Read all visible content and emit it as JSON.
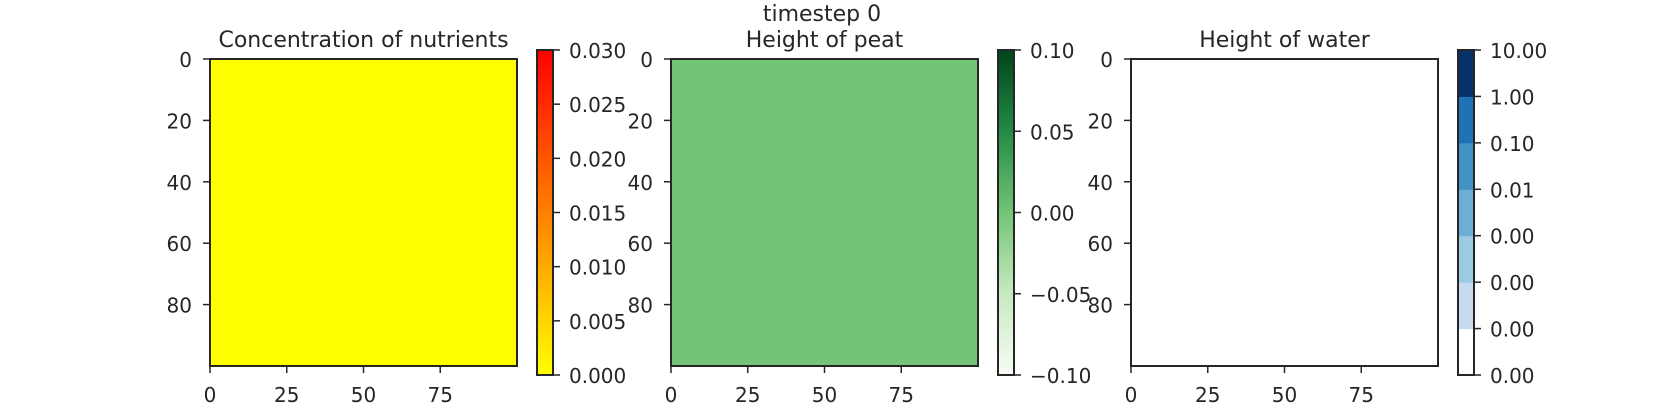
{
  "figure": {
    "suptitle": "timestep 0"
  },
  "chart_data": [
    {
      "type": "heatmap",
      "title": "Concentration of nutrients",
      "xlabel": "",
      "ylabel": "",
      "x_ticks": [
        0,
        25,
        50,
        75
      ],
      "y_ticks": [
        0,
        20,
        40,
        60,
        80
      ],
      "xlim": [
        0,
        100
      ],
      "ylim": [
        100,
        0
      ],
      "grid_size": [
        100,
        100
      ],
      "uniform_value": 0.0,
      "fill_color": "#ffff00",
      "colorbar": {
        "type": "continuous",
        "range": [
          0.0,
          0.03
        ],
        "ticks": [
          "0.000",
          "0.005",
          "0.010",
          "0.015",
          "0.020",
          "0.025",
          "0.030"
        ],
        "colors": [
          "#ffff00",
          "#ffc000",
          "#ff8000",
          "#ff4000",
          "#ff0000"
        ]
      }
    },
    {
      "type": "heatmap",
      "title": "Height of peat",
      "xlabel": "",
      "ylabel": "",
      "x_ticks": [
        0,
        25,
        50,
        75
      ],
      "y_ticks": [
        0,
        20,
        40,
        60,
        80
      ],
      "xlim": [
        0,
        100
      ],
      "ylim": [
        100,
        0
      ],
      "grid_size": [
        100,
        100
      ],
      "uniform_value": 0.0,
      "fill_color": "#73c476",
      "colorbar": {
        "type": "continuous",
        "range": [
          -0.1,
          0.1
        ],
        "ticks": [
          "−0.10",
          "−0.05",
          "0.00",
          "0.05",
          "0.10"
        ],
        "colors": [
          "#f7fcf5",
          "#c7e9c0",
          "#73c476",
          "#238b45",
          "#00441b"
        ]
      }
    },
    {
      "type": "heatmap",
      "title": "Height of water",
      "xlabel": "",
      "ylabel": "",
      "x_ticks": [
        0,
        25,
        50,
        75
      ],
      "y_ticks": [
        0,
        20,
        40,
        60,
        80
      ],
      "xlim": [
        0,
        100
      ],
      "ylim": [
        100,
        0
      ],
      "grid_size": [
        100,
        100
      ],
      "uniform_value": 0.0,
      "fill_color": "#ffffff",
      "colorbar": {
        "type": "discrete",
        "ticks": [
          "0.00",
          "0.00",
          "0.00",
          "0.00",
          "0.01",
          "0.10",
          "1.00",
          "10.00"
        ],
        "colors": [
          "#ffffff",
          "#c6dbef",
          "#9ecae1",
          "#6baed6",
          "#4292c6",
          "#2171b5",
          "#08306b"
        ]
      }
    }
  ]
}
